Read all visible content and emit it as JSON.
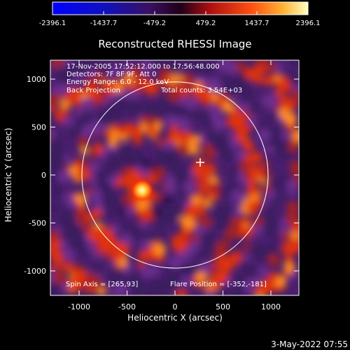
{
  "colorbar": {
    "ticks": [
      "-2396.1",
      "-1437.7",
      "-479.2",
      "479.2",
      "1437.7",
      "2396.1"
    ]
  },
  "plot": {
    "title": "Reconstructed RHESSI Image",
    "info_lines": [
      "17-Nov-2005 17:52:12.000 to 17:56:48.000",
      "Detectors: 7F 8F 9F, Att 0",
      "Energy Range: 6.0 - 12.0 keV"
    ],
    "method": "Back Projection",
    "total_counts": "Total counts: 3.54E+03",
    "spin_axis": "Spin Axis = [265,93]",
    "flare_position": "Flare Position = [-352,-181]",
    "xlabel": "Heliocentric X (arcsec)",
    "ylabel": "Heliocentric Y (arcsec)",
    "x_ticks": [
      "-1000",
      "-500",
      "0",
      "500",
      "1000"
    ],
    "y_ticks": [
      "1000",
      "500",
      "0",
      "-500",
      "-1000"
    ]
  },
  "footer": {
    "timestamp": "3-May-2022 07:55"
  },
  "colors": {
    "background": "#000000",
    "foreground": "#ffffff",
    "purple_dark": "#3a1a5e",
    "purple": "#6a2f8e",
    "red": "#e03010",
    "orange": "#ff8a20",
    "yellow": "#ffff90"
  }
}
